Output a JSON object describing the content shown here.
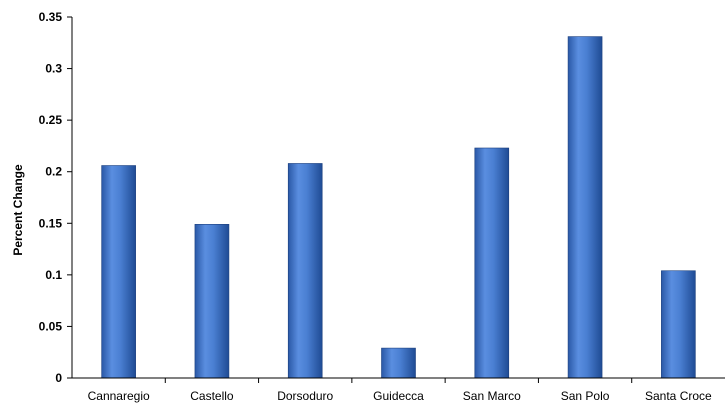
{
  "chart_data": {
    "type": "bar",
    "title": "",
    "xlabel": "",
    "ylabel": "Percent Change",
    "categories": [
      "Cannaregio",
      "Castello",
      "Dorsoduro",
      "Guidecca",
      "San Marco",
      "San Polo",
      "Santa Croce"
    ],
    "values": [
      0.206,
      0.149,
      0.208,
      0.029,
      0.223,
      0.331,
      0.104
    ],
    "ylim": [
      0,
      0.35
    ],
    "yticks": [
      "0",
      "0.05",
      "0.1",
      "0.15",
      "0.2",
      "0.25",
      "0.3",
      "0.35"
    ],
    "grid": false,
    "legend": "none",
    "bar_color": "#3a70c6"
  }
}
